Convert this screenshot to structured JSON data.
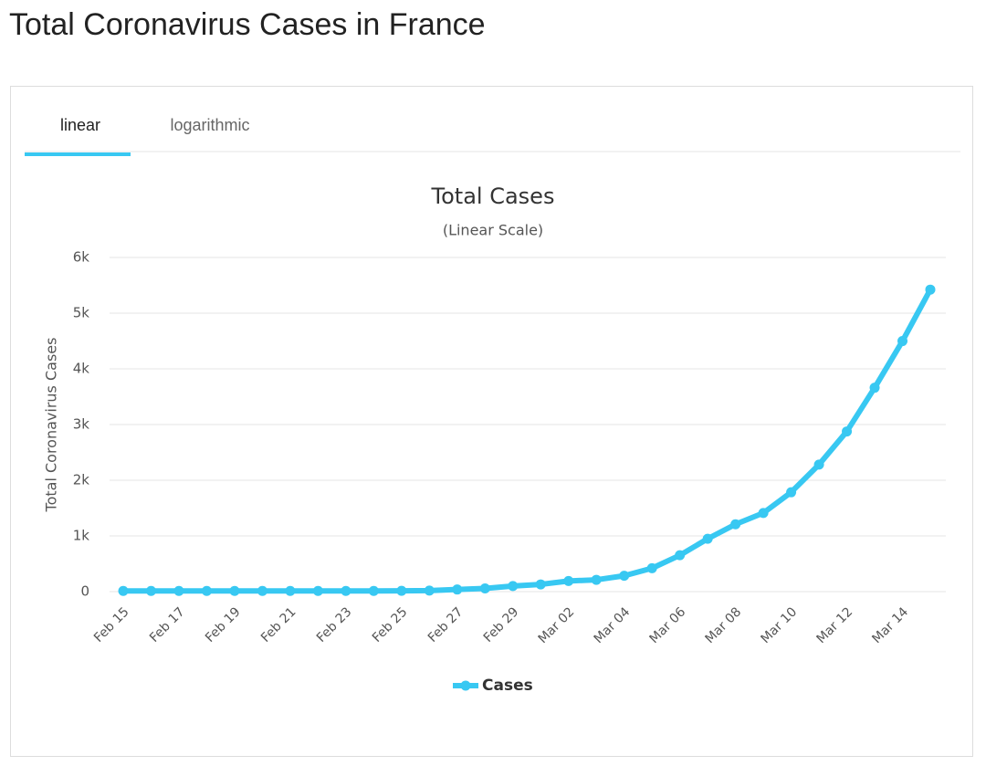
{
  "header": {
    "title": "Total Coronavirus Cases in France"
  },
  "tabs": [
    "linear",
    "logarithmic"
  ],
  "chart_data": {
    "type": "line",
    "title": "Total Cases",
    "subtitle": "(Linear Scale)",
    "y_label": "Total Coronavirus Cases",
    "categories": [
      "Feb 15",
      null,
      "Feb 17",
      null,
      "Feb 19",
      null,
      "Feb 21",
      null,
      "Feb 23",
      null,
      "Feb 25",
      null,
      "Feb 27",
      null,
      "Feb 29",
      null,
      "Mar 02",
      null,
      "Mar 04",
      null,
      "Mar 06",
      null,
      "Mar 08",
      null,
      "Mar 10",
      null,
      "Mar 12",
      null,
      "Mar 14",
      null
    ],
    "series": [
      {
        "name": "Cases",
        "color": "#38c8f2",
        "values": [
          12,
          12,
          12,
          12,
          12,
          12,
          12,
          12,
          12,
          12,
          14,
          18,
          38,
          57,
          100,
          130,
          191,
          212,
          285,
          420,
          653,
          949,
          1209,
          1412,
          1784,
          2281,
          2876,
          3661,
          4499,
          5423
        ]
      }
    ],
    "ylim": [
      0,
      6000
    ],
    "yticks": [
      0,
      {
        "value": 1000,
        "label": "1k"
      },
      {
        "value": 2000,
        "label": "2k"
      },
      {
        "value": 3000,
        "label": "3k"
      },
      {
        "value": 4000,
        "label": "4k"
      },
      {
        "value": 5000,
        "label": "5k"
      },
      {
        "value": 6000,
        "label": "6k"
      }
    ],
    "grid": true,
    "log_scale": false,
    "legend": "bottom"
  }
}
